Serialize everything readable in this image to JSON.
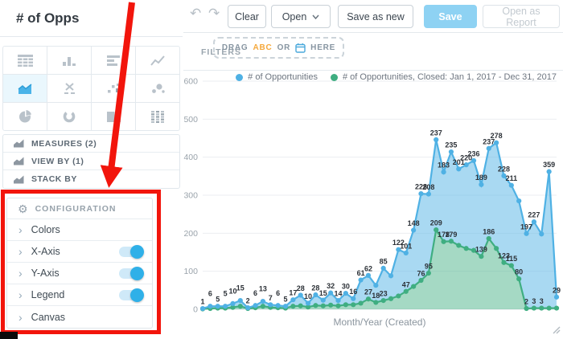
{
  "window": {
    "title": "# of Opps"
  },
  "toolbar": {
    "undo_icon": "undo-arrow",
    "redo_icon": "redo-arrow",
    "buttons": {
      "clear": "Clear",
      "open": "Open",
      "save_as_new": "Save as new",
      "save": "Save",
      "open_as_report": "Open as Report"
    }
  },
  "filters": {
    "label": "FILTERS",
    "dropzone": {
      "drag": "DRAG",
      "abc": "ABC",
      "or": "OR",
      "calendar_icon": "calendar",
      "here": "HERE"
    }
  },
  "sidebar": {
    "chart_types": [
      {
        "id": "table",
        "active": false
      },
      {
        "id": "column",
        "active": false
      },
      {
        "id": "bar",
        "active": false
      },
      {
        "id": "line",
        "active": false
      },
      {
        "id": "area",
        "active": true
      },
      {
        "id": "headline",
        "active": false
      },
      {
        "id": "scatter",
        "active": false
      },
      {
        "id": "bubble",
        "active": false
      },
      {
        "id": "pie",
        "active": false
      },
      {
        "id": "donut",
        "active": false
      },
      {
        "id": "treemap",
        "active": false
      },
      {
        "id": "heatmap",
        "active": false
      }
    ],
    "buckets": [
      {
        "label": "MEASURES (2)"
      },
      {
        "label": "VIEW BY (1)"
      },
      {
        "label": "STACK BY"
      }
    ],
    "configuration": {
      "title": "CONFIGURATION",
      "gear_icon": "gear",
      "items": [
        {
          "label": "Colors",
          "toggle": null
        },
        {
          "label": "X-Axis",
          "toggle": true
        },
        {
          "label": "Y-Axis",
          "toggle": true
        },
        {
          "label": "Legend",
          "toggle": true
        },
        {
          "label": "Canvas",
          "toggle": null
        }
      ]
    }
  },
  "chart_data": {
    "type": "area",
    "stacked": true,
    "x_axis_title": "Month/Year (Created)",
    "ylim": [
      0,
      600
    ],
    "yticks": [
      0,
      100,
      200,
      300,
      400,
      500,
      600
    ],
    "grid": true,
    "legend_position": "top-right",
    "series": [
      {
        "name": "# of Opportunities",
        "color": "#4FB1E4",
        "fill": "rgba(99,185,232,0.55)",
        "values": [
          1,
          6,
          5,
          5,
          10,
          15,
          2,
          6,
          13,
          7,
          6,
          5,
          17,
          28,
          10,
          28,
          15,
          32,
          14,
          30,
          16,
          61,
          62,
          45,
          85,
          60,
          122,
          101,
          148,
          228,
          208,
          237,
          183,
          235,
          201,
          220,
          236,
          189,
          237,
          278,
          228,
          211,
          205,
          197,
          227,
          195,
          359,
          29
        ],
        "labels": [
          "1",
          "6",
          "5",
          "5",
          "10",
          "15",
          "2",
          "6",
          "13",
          "7",
          "6",
          "5",
          "17",
          "28",
          "10",
          "28",
          "15",
          "32",
          "14",
          "30",
          "16",
          "61",
          "62",
          null,
          "85",
          null,
          "122",
          "101",
          "148",
          "228",
          "208",
          "237",
          "183",
          "235",
          "201",
          "220",
          "236",
          "189",
          "237",
          "278",
          "228",
          "211",
          null,
          "197",
          "227",
          null,
          "359",
          "29"
        ]
      },
      {
        "name": "# of Opportunities, Closed: Jan 1, 2017 - Dec 31, 2017",
        "color": "#3FAE81",
        "fill": "rgba(76,180,137,0.5)",
        "values": [
          1,
          2,
          3,
          3,
          5,
          8,
          2,
          4,
          8,
          5,
          4,
          3,
          8,
          9,
          6,
          10,
          9,
          11,
          9,
          12,
          12,
          16,
          27,
          18,
          23,
          28,
          35,
          47,
          60,
          76,
          95,
          209,
          178,
          179,
          168,
          160,
          155,
          139,
          186,
          160,
          123,
          115,
          80,
          2,
          3,
          3,
          3,
          3
        ],
        "labels": [
          null,
          null,
          null,
          null,
          null,
          null,
          null,
          null,
          null,
          null,
          null,
          null,
          null,
          null,
          null,
          null,
          null,
          null,
          null,
          null,
          null,
          null,
          "27",
          "18",
          "23",
          null,
          null,
          "47",
          null,
          "76",
          "95",
          "209",
          "178",
          "179",
          null,
          null,
          null,
          "139",
          "186",
          null,
          "123",
          "115",
          "80",
          "2",
          "3",
          "3",
          null,
          null
        ]
      }
    ]
  },
  "annotation": {
    "box_color": "#F2150C",
    "arrow_color": "#F2150C"
  },
  "colors": {
    "accent_blue": "#2FB0E8",
    "save_button_bg": "#8ED2F3",
    "series_blue": "#4FB1E4",
    "series_green": "#3FAE81",
    "annotation_red": "#F2150C"
  }
}
